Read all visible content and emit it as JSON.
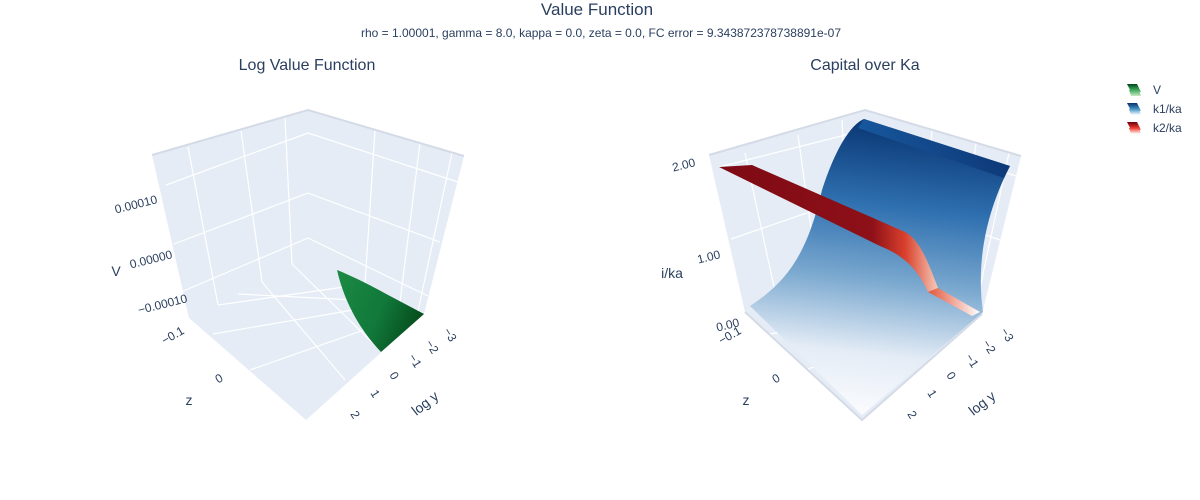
{
  "figure": {
    "title": "Value Function",
    "subtitle": "rho = 1.00001, gamma = 8.0, kappa = 0.0, zeta = 0.0, FC error = 9.343872378738891e-07"
  },
  "legend": {
    "placement": "top-right",
    "items": [
      {
        "label": "V",
        "colors": [
          "#00441b",
          "#41ab5d",
          "#c7e9c0"
        ]
      },
      {
        "label": "k1/ka",
        "colors": [
          "#08306b",
          "#4292c6",
          "#ffffff"
        ]
      },
      {
        "label": "k2/ka",
        "colors": [
          "#67000d",
          "#ef3b2c",
          "#ffffff"
        ]
      }
    ]
  },
  "chart_data": [
    {
      "type": "surface3d",
      "title": "Log Value Function",
      "xlabel": "log y",
      "ylabel": "z",
      "zlabel": "V",
      "x_ticks": [
        "−3",
        "−2",
        "−1",
        "0",
        "1",
        "2"
      ],
      "y_ticks": [
        "−0.1",
        "0"
      ],
      "z_ticks": [
        "0.00010",
        "0.00000",
        "−0.00010"
      ],
      "xlim": [
        -3,
        2
      ],
      "zlim": [
        -0.00015,
        0.00015
      ],
      "grid": true,
      "series": [
        {
          "name": "V",
          "colorscale": "Greens",
          "note_region": "x in [-3, -0.5], V near 0"
        }
      ]
    },
    {
      "type": "surface3d",
      "title": "Capital over Ka",
      "xlabel": "log y",
      "ylabel": "z",
      "zlabel": "i/ka",
      "x_ticks": [
        "−3",
        "−2",
        "−1",
        "0",
        "1",
        "2"
      ],
      "y_ticks": [
        "−0.1",
        "0"
      ],
      "z_ticks": [
        "2.00",
        "1.00",
        "0.00"
      ],
      "zlim": [
        0,
        2
      ],
      "grid": true,
      "series": [
        {
          "name": "k1/ka",
          "colorscale": "Blues",
          "z_range": [
            0,
            2
          ]
        },
        {
          "name": "k2/ka",
          "colorscale": "Reds",
          "z_range": [
            0,
            2
          ]
        }
      ]
    }
  ]
}
